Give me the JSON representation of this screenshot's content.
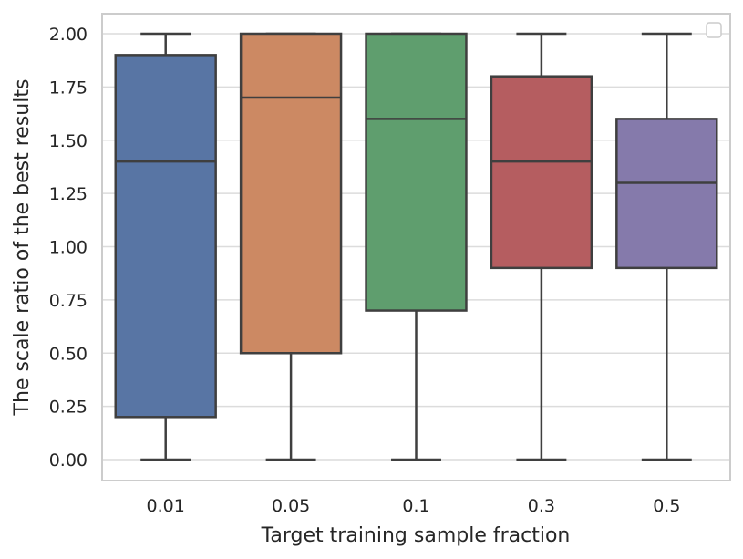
{
  "chart_data": {
    "type": "box",
    "title": "",
    "xlabel": "Target training sample fraction",
    "ylabel": "The scale ratio of the best results",
    "ylim": [
      -0.1,
      2.1
    ],
    "yticks": [
      0.0,
      0.25,
      0.5,
      0.75,
      1.0,
      1.25,
      1.5,
      1.75,
      2.0
    ],
    "ytick_labels": [
      "0.00",
      "0.25",
      "0.50",
      "0.75",
      "1.00",
      "1.25",
      "1.50",
      "1.75",
      "2.00"
    ],
    "grid": true,
    "legend": {
      "placement": "top-right",
      "entries": []
    },
    "categories": [
      "0.01",
      "0.05",
      "0.1",
      "0.3",
      "0.5"
    ],
    "boxes": [
      {
        "name": "0.01",
        "whisker_low": 0.0,
        "q1": 0.2,
        "median": 1.4,
        "q3": 1.9,
        "whisker_high": 2.0,
        "color": "#5875a4"
      },
      {
        "name": "0.05",
        "whisker_low": 0.0,
        "q1": 0.5,
        "median": 1.7,
        "q3": 2.0,
        "whisker_high": 2.0,
        "color": "#cc8963"
      },
      {
        "name": "0.1",
        "whisker_low": 0.0,
        "q1": 0.7,
        "median": 1.6,
        "q3": 2.0,
        "whisker_high": 2.0,
        "color": "#5f9e6e"
      },
      {
        "name": "0.3",
        "whisker_low": 0.0,
        "q1": 0.9,
        "median": 1.4,
        "q3": 1.8,
        "whisker_high": 2.0,
        "color": "#b55d60"
      },
      {
        "name": "0.5",
        "whisker_low": 0.0,
        "q1": 0.9,
        "median": 1.3,
        "q3": 1.6,
        "whisker_high": 2.0,
        "color": "#857aab"
      }
    ]
  }
}
